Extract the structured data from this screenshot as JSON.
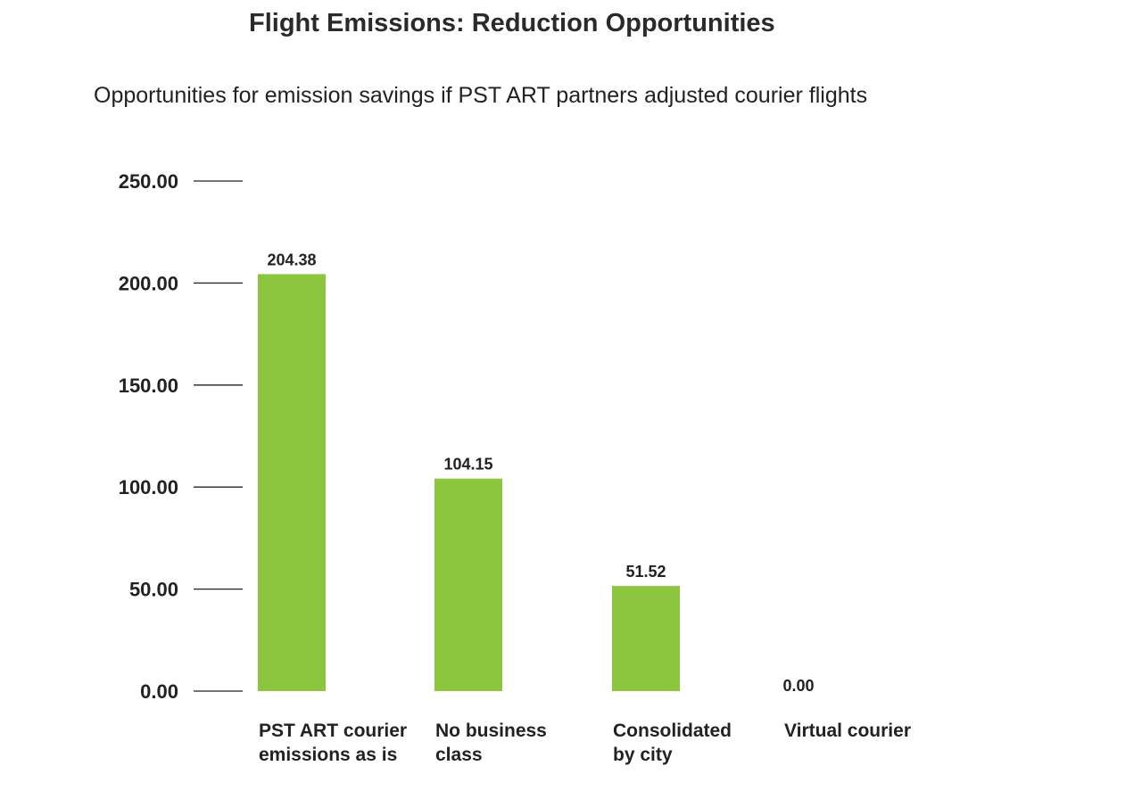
{
  "chart_data": {
    "type": "bar",
    "title": "Flight Emissions: Reduction Opportunities",
    "subtitle": "Opportunities for emission savings if PST ART partners adjusted courier flights",
    "xlabel": "",
    "ylabel": "",
    "categories": [
      [
        "PST ART courier",
        "emissions as is"
      ],
      [
        "No business",
        "class"
      ],
      [
        "Consolidated",
        "by city"
      ],
      [
        "Virtual courier"
      ]
    ],
    "values": [
      204.38,
      104.15,
      51.52,
      0.0
    ],
    "value_labels": [
      "204.38",
      "104.15",
      "51.52",
      "0.00"
    ],
    "ylim": [
      0,
      250
    ],
    "yticks": [
      0,
      50,
      100,
      150,
      200,
      250
    ],
    "ytick_labels": [
      "0.00",
      "50.00",
      "100.00",
      "150.00",
      "200.00",
      "250.00"
    ],
    "grid": false,
    "colors": {
      "bar": "#8cc63f",
      "text": "#222222",
      "tick": "#222222"
    }
  }
}
